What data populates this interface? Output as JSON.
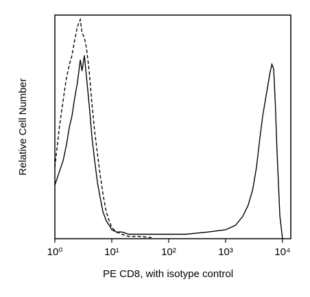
{
  "chart_data": {
    "type": "line",
    "xlabel": "PE CD8, with isotype control",
    "ylabel": "Relative Cell Number",
    "log_x": true,
    "xlim": [
      1,
      14000
    ],
    "xticks": [
      {
        "value": 1,
        "label": "10⁰"
      },
      {
        "value": 10,
        "label": "10¹"
      },
      {
        "value": 100,
        "label": "10²"
      },
      {
        "value": 1000,
        "label": "10³"
      },
      {
        "value": 10000,
        "label": "10⁴"
      }
    ],
    "ylim": [
      0,
      100
    ],
    "x": [
      1,
      1.2,
      1.4,
      1.6,
      1.8,
      2,
      2.2,
      2.5,
      2.8,
      3,
      3.3,
      3.6,
      4,
      4.5,
      5,
      5.6,
      6.3,
      7,
      8,
      9,
      10,
      12,
      15,
      20,
      30,
      50,
      100,
      200,
      500,
      1000,
      1500,
      2000,
      2500,
      3000,
      3500,
      4000,
      4500,
      5000,
      5500,
      6000,
      6500,
      7000,
      7500,
      8000,
      9000,
      10000
    ],
    "series": [
      {
        "color": "#000000",
        "dashed": false,
        "values": [
          24,
          30,
          35,
          42,
          50,
          55,
          62,
          70,
          80,
          75,
          82,
          72,
          60,
          45,
          35,
          25,
          18,
          12,
          8,
          6,
          4,
          3,
          3,
          2,
          2,
          2,
          2,
          2,
          3,
          4,
          6,
          10,
          15,
          22,
          32,
          45,
          55,
          62,
          68,
          74,
          78,
          76,
          60,
          40,
          10,
          0
        ]
      },
      {
        "color": "#000000",
        "dashed": true,
        "values": [
          32,
          50,
          62,
          72,
          78,
          82,
          88,
          95,
          98,
          92,
          90,
          85,
          75,
          60,
          48,
          38,
          28,
          20,
          12,
          8,
          5,
          3,
          2,
          1,
          1,
          0.5,
          null,
          null,
          null,
          null,
          null,
          null,
          null,
          null,
          null,
          null,
          null,
          null,
          null,
          null,
          null,
          null,
          null,
          null,
          null,
          null
        ]
      }
    ]
  }
}
